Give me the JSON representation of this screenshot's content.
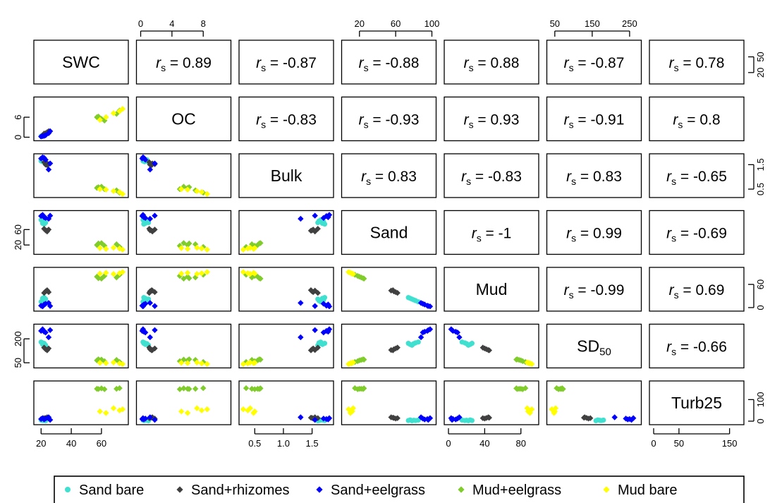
{
  "chart_data": {
    "type": "scatter",
    "title": "",
    "variables": [
      {
        "key": "SWC",
        "label": "SWC",
        "label_sub": "",
        "range": [
          18,
          75
        ],
        "ticks": [
          20,
          40,
          60
        ],
        "tick_side": "bottom"
      },
      {
        "key": "OC",
        "label": "OC",
        "label_sub": "",
        "range": [
          0,
          11
        ],
        "ticks": [
          0,
          4,
          8
        ],
        "tick_side": "top",
        "ticks_left": [
          0,
          6
        ]
      },
      {
        "key": "Bulk",
        "label": "Bulk",
        "label_sub": "",
        "range": [
          0.3,
          1.8
        ],
        "ticks": [
          0.5,
          1.0,
          1.5
        ],
        "tick_side": "bottom"
      },
      {
        "key": "Sand",
        "label": "Sand",
        "label_sub": "",
        "range": [
          5,
          100
        ],
        "ticks": [
          20,
          60,
          100
        ],
        "tick_side": "top"
      },
      {
        "key": "Mud",
        "label": "Mud",
        "label_sub": "",
        "range": [
          0,
          95
        ],
        "ticks": [
          0,
          40,
          80
        ],
        "tick_side": "bottom"
      },
      {
        "key": "SD50",
        "label": "SD",
        "label_sub": "50",
        "range": [
          40,
          270
        ],
        "ticks": [
          50,
          150,
          250
        ],
        "tick_side": "top"
      },
      {
        "key": "Turb25",
        "label": "Turb25",
        "label_sub": "",
        "range": [
          0,
          170
        ],
        "ticks": [
          0,
          50,
          150
        ],
        "tick_side": "bottom"
      }
    ],
    "right_ticks": {
      "0": {
        "range": [
          5,
          75
        ],
        "ticks": [
          20,
          50
        ]
      },
      "2": {
        "range": [
          0.3,
          1.8
        ],
        "ticks": [
          0.5,
          1.5
        ]
      },
      "4": {
        "range": [
          0,
          95
        ],
        "ticks": [
          0,
          60
        ]
      },
      "6": {
        "range": [
          0,
          170
        ],
        "ticks": [
          0,
          100
        ]
      }
    },
    "left_ticks": {
      "1": {
        "range": [
          0,
          11
        ],
        "ticks": [
          0,
          6
        ]
      },
      "3": {
        "range": [
          5,
          100
        ],
        "ticks": [
          20,
          60
        ]
      },
      "5": {
        "range": [
          40,
          270
        ],
        "ticks": [
          50,
          200
        ]
      }
    },
    "correlation_symbol": "r",
    "correlation_sub": "s",
    "correlations": [
      [
        null,
        "0.89",
        "-0.87",
        "-0.88",
        "0.88",
        "-0.87",
        "0.78"
      ],
      [
        null,
        null,
        "-0.83",
        "-0.93",
        "0.93",
        "-0.91",
        "0.8"
      ],
      [
        null,
        null,
        null,
        "0.83",
        "-0.83",
        "0.83",
        "-0.65"
      ],
      [
        null,
        null,
        null,
        null,
        "-1",
        "0.99",
        "-0.69"
      ],
      [
        null,
        null,
        null,
        null,
        null,
        "-0.99",
        "0.69"
      ],
      [
        null,
        null,
        null,
        null,
        null,
        null,
        "-0.66"
      ],
      [
        null,
        null,
        null,
        null,
        null,
        null,
        null
      ]
    ],
    "groups": [
      {
        "name": "Sand bare",
        "color": "#40e0d0",
        "shape": "circle"
      },
      {
        "name": "Sand+rhizomes",
        "color": "#404040",
        "shape": "diamond"
      },
      {
        "name": "Sand+eelgrass",
        "color": "#0000ff",
        "shape": "diamond"
      },
      {
        "name": "Mud+eelgrass",
        "color": "#7fcc2a",
        "shape": "diamond"
      },
      {
        "name": "Mud bare",
        "color": "#ffff00",
        "shape": "diamond"
      }
    ],
    "observations": [
      {
        "g": 0,
        "v": [
          20,
          0.3,
          1.65,
          85,
          15,
          180,
          5
        ]
      },
      {
        "g": 0,
        "v": [
          21,
          0.5,
          1.62,
          82,
          18,
          175,
          3
        ]
      },
      {
        "g": 0,
        "v": [
          22,
          0.8,
          1.7,
          80,
          20,
          170,
          4
        ]
      },
      {
        "g": 0,
        "v": [
          23,
          1.0,
          1.6,
          78,
          22,
          160,
          2
        ]
      },
      {
        "g": 0,
        "v": [
          21,
          0.6,
          1.68,
          76,
          24,
          165,
          6
        ]
      },
      {
        "g": 0,
        "v": [
          22,
          0.4,
          1.72,
          74,
          26,
          172,
          3
        ]
      },
      {
        "g": 1,
        "v": [
          23,
          1.2,
          1.5,
          58,
          42,
          135,
          15
        ]
      },
      {
        "g": 1,
        "v": [
          24,
          1.5,
          1.55,
          55,
          44,
          130,
          18
        ]
      },
      {
        "g": 1,
        "v": [
          25,
          1.8,
          1.52,
          60,
          40,
          140,
          12
        ]
      },
      {
        "g": 1,
        "v": [
          22,
          1.1,
          1.6,
          62,
          38,
          145,
          14
        ]
      },
      {
        "g": 1,
        "v": [
          24,
          1.4,
          1.48,
          57,
          45,
          128,
          16
        ]
      },
      {
        "g": 2,
        "v": [
          20,
          0.2,
          1.75,
          95,
          5,
          250,
          10
        ]
      },
      {
        "g": 2,
        "v": [
          21,
          0.3,
          1.8,
          98,
          3,
          260,
          14
        ]
      },
      {
        "g": 2,
        "v": [
          22,
          0.4,
          1.78,
          92,
          8,
          245,
          8
        ]
      },
      {
        "g": 2,
        "v": [
          23,
          0.6,
          1.7,
          90,
          10,
          240,
          12
        ]
      },
      {
        "g": 2,
        "v": [
          25,
          1.2,
          1.3,
          88,
          12,
          210,
          18
        ]
      },
      {
        "g": 2,
        "v": [
          26,
          1.8,
          1.55,
          96,
          4,
          255,
          6
        ]
      },
      {
        "g": 3,
        "v": [
          57,
          6.0,
          0.55,
          20,
          80,
          65,
          150
        ]
      },
      {
        "g": 3,
        "v": [
          60,
          5.5,
          0.6,
          25,
          75,
          70,
          152
        ]
      },
      {
        "g": 3,
        "v": [
          62,
          5.0,
          0.5,
          18,
          82,
          60,
          148
        ]
      },
      {
        "g": 3,
        "v": [
          70,
          7.0,
          0.45,
          22,
          78,
          68,
          150
        ]
      },
      {
        "g": 3,
        "v": [
          72,
          8.0,
          0.35,
          15,
          85,
          55,
          153
        ]
      },
      {
        "g": 3,
        "v": [
          58,
          6.2,
          0.58,
          24,
          76,
          72,
          149
        ]
      },
      {
        "g": 4,
        "v": [
          59,
          5.2,
          0.5,
          12,
          88,
          50,
          45
        ]
      },
      {
        "g": 4,
        "v": [
          63,
          6.0,
          0.48,
          10,
          90,
          48,
          38
        ]
      },
      {
        "g": 4,
        "v": [
          68,
          7.2,
          0.42,
          13,
          87,
          52,
          60
        ]
      },
      {
        "g": 4,
        "v": [
          74,
          8.5,
          0.3,
          8,
          92,
          42,
          55
        ]
      },
      {
        "g": 4,
        "v": [
          72,
          7.8,
          0.38,
          11,
          89,
          46,
          50
        ]
      }
    ]
  }
}
